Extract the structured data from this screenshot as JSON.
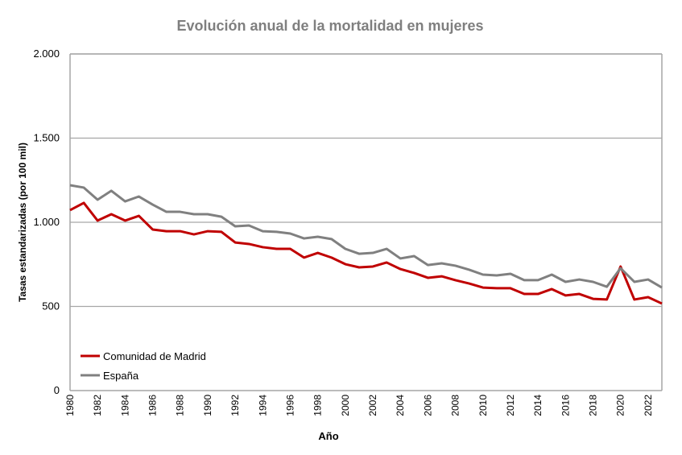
{
  "chart_data": {
    "type": "line",
    "title": "Evolución anual de la mortalidad en mujeres",
    "xlabel": "Año",
    "ylabel": "Tasas estandarizadas (por 100 mil)",
    "ylim": [
      0,
      2000
    ],
    "yticks": [
      0,
      500,
      1000,
      1500,
      2000
    ],
    "ytick_labels": [
      "0",
      "500",
      "1.000",
      "1.500",
      "2.000"
    ],
    "xlim": [
      1980,
      2023
    ],
    "xticks": [
      "1980",
      "1982",
      "1984",
      "1986",
      "1988",
      "1990",
      "1992",
      "1994",
      "1996",
      "1998",
      "2000",
      "2002",
      "2004",
      "2006",
      "2008",
      "2010",
      "2012",
      "2014",
      "2016",
      "2018",
      "2020",
      "2022"
    ],
    "grid": true,
    "legend_position": "bottom-left",
    "x": [
      1980,
      1981,
      1982,
      1983,
      1984,
      1985,
      1986,
      1987,
      1988,
      1989,
      1990,
      1991,
      1992,
      1993,
      1994,
      1995,
      1996,
      1997,
      1998,
      1999,
      2000,
      2001,
      2002,
      2003,
      2004,
      2005,
      2006,
      2007,
      2008,
      2009,
      2010,
      2011,
      2012,
      2013,
      2014,
      2015,
      2016,
      2017,
      2018,
      2019,
      2020,
      2021,
      2022,
      2023
    ],
    "series": [
      {
        "name": "Comunidad de Madrid",
        "color": "#c00000",
        "values": [
          1072,
          1115,
          1010,
          1048,
          1010,
          1038,
          957,
          947,
          947,
          928,
          947,
          943,
          880,
          871,
          852,
          842,
          842,
          790,
          818,
          790,
          751,
          732,
          737,
          761,
          722,
          699,
          670,
          679,
          656,
          636,
          612,
          608,
          608,
          574,
          574,
          603,
          565,
          574,
          545,
          541,
          737,
          541,
          555,
          517
        ]
      },
      {
        "name": "España",
        "color": "#808080",
        "values": [
          1220,
          1206,
          1134,
          1187,
          1124,
          1153,
          1105,
          1062,
          1062,
          1048,
          1048,
          1033,
          976,
          981,
          947,
          943,
          933,
          904,
          914,
          900,
          842,
          813,
          818,
          842,
          785,
          799,
          746,
          756,
          742,
          718,
          689,
          684,
          694,
          656,
          656,
          689,
          646,
          660,
          646,
          617,
          727,
          646,
          660,
          612
        ]
      }
    ]
  }
}
